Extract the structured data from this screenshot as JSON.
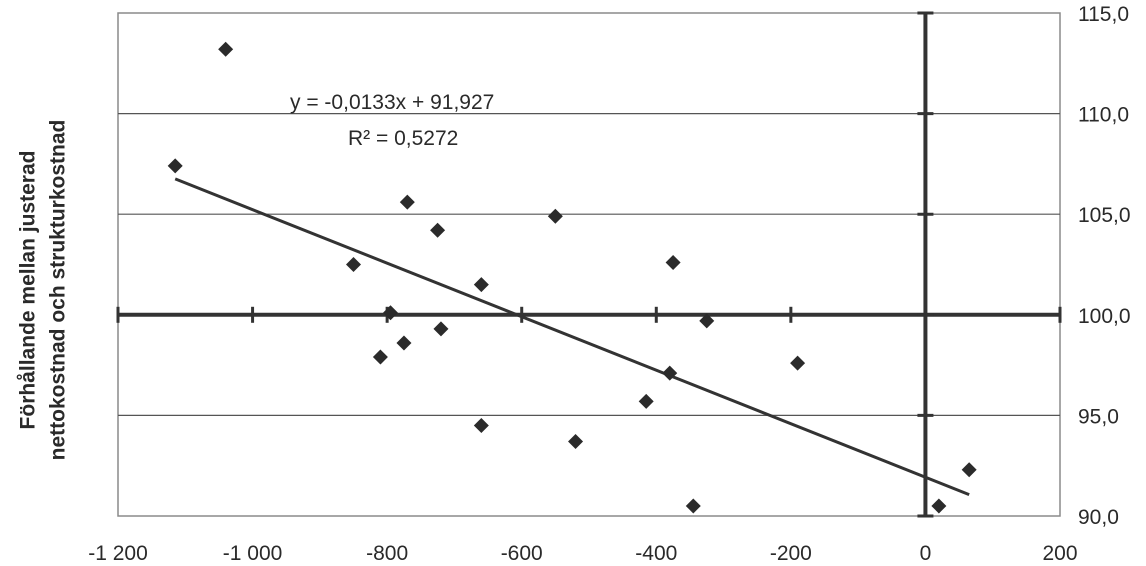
{
  "chart_data": {
    "type": "scatter",
    "title": "",
    "ylabel_lines": [
      "Förhållande mellan justerad",
      "nettokostnad och strukturkostnad"
    ],
    "xlabel": "",
    "xlim": [
      -1200,
      200
    ],
    "ylim": [
      90,
      115
    ],
    "x_ticks": [
      -1200,
      -1000,
      -800,
      -600,
      -400,
      -200,
      0,
      200
    ],
    "x_tick_labels": [
      "-1 200",
      "-1 000",
      "-800",
      "-600",
      "-400",
      "-200",
      "0",
      "200"
    ],
    "y_ticks": [
      90,
      95,
      100,
      105,
      110,
      115
    ],
    "y_tick_labels": [
      "90,0",
      "95,0",
      "100,0",
      "105,0",
      "110,0",
      "115,0"
    ],
    "y_axis_side": "right",
    "grid": "horizontal",
    "points": [
      {
        "x": -1115,
        "y": 107.4
      },
      {
        "x": -1040,
        "y": 113.2
      },
      {
        "x": -850,
        "y": 102.5
      },
      {
        "x": -810,
        "y": 97.9
      },
      {
        "x": -795,
        "y": 100.1
      },
      {
        "x": -775,
        "y": 98.6
      },
      {
        "x": -770,
        "y": 105.6
      },
      {
        "x": -725,
        "y": 104.2
      },
      {
        "x": -720,
        "y": 99.3
      },
      {
        "x": -660,
        "y": 101.5
      },
      {
        "x": -660,
        "y": 94.5
      },
      {
        "x": -550,
        "y": 104.9
      },
      {
        "x": -520,
        "y": 93.7
      },
      {
        "x": -415,
        "y": 95.7
      },
      {
        "x": -380,
        "y": 97.1
      },
      {
        "x": -375,
        "y": 102.6
      },
      {
        "x": -345,
        "y": 90.5
      },
      {
        "x": -325,
        "y": 99.7
      },
      {
        "x": -190,
        "y": 97.6
      },
      {
        "x": 20,
        "y": 90.5
      },
      {
        "x": 65,
        "y": 92.3
      }
    ],
    "trendline": {
      "x_start": -1115,
      "x_end": 65,
      "slope": -0.0133,
      "intercept": 91.927
    },
    "annotations": {
      "equation": "y = -0,0133x + 91,927",
      "r_squared": "R² = 0,5272"
    }
  }
}
